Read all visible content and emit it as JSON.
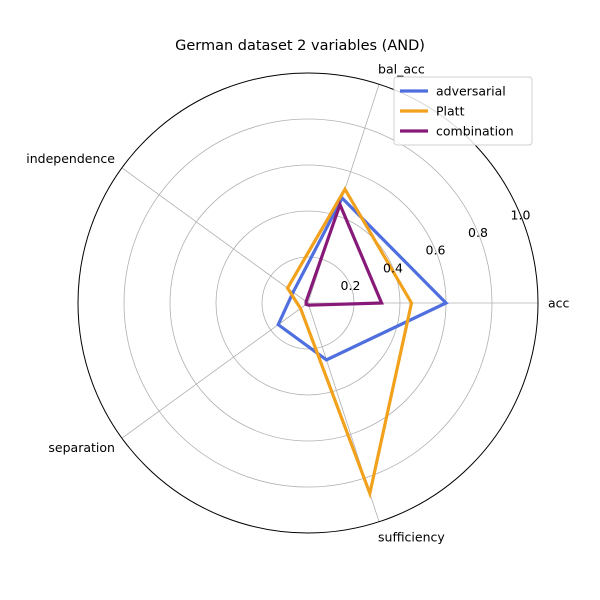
{
  "chart_data": {
    "type": "radar",
    "title": "German dataset 2 variables (AND)",
    "axes": [
      "acc",
      "bal_acc",
      "independence",
      "separation",
      "sufficiency"
    ],
    "rlim": [
      0,
      1.0
    ],
    "radial_ticks": [
      {
        "value": 0.2,
        "label": "0.2"
      },
      {
        "value": 0.4,
        "label": "0.4"
      },
      {
        "value": 0.6,
        "label": "0.6"
      },
      {
        "value": 0.8,
        "label": "0.8"
      },
      {
        "value": 1.0,
        "label": "1.0"
      }
    ],
    "legend_position": "top-right",
    "grid": true,
    "series": [
      {
        "name": "adversarial",
        "color": "#4f6fdf",
        "values": [
          0.6,
          0.48,
          0.08,
          0.16,
          0.26
        ]
      },
      {
        "name": "Platt",
        "color": "#f1a11b",
        "values": [
          0.45,
          0.52,
          0.11,
          0.04,
          0.87
        ]
      },
      {
        "name": "combination",
        "color": "#871a78",
        "values": [
          0.32,
          0.45,
          0.01,
          0.01,
          0.01
        ]
      }
    ]
  }
}
